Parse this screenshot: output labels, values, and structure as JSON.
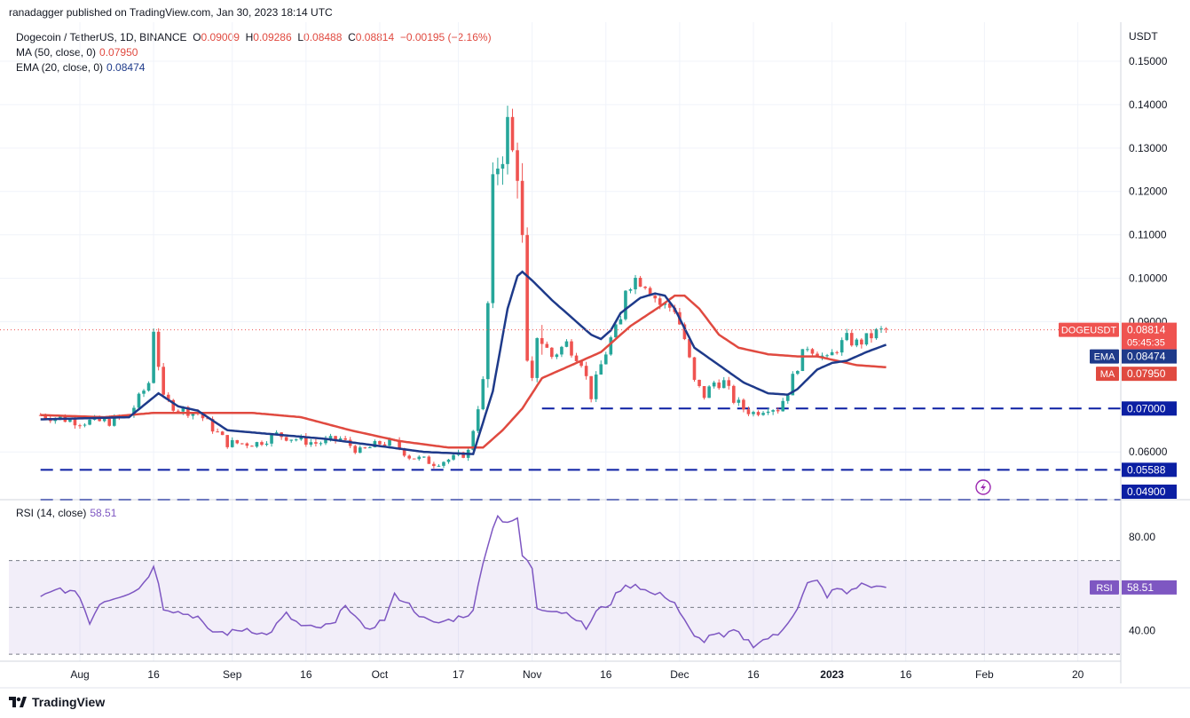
{
  "attribution": "ranadagger published on TradingView.com, Jan 30, 2023 18:14 UTC",
  "legend": {
    "symbol": "Dogecoin / TetherUS, 1D, BINANCE",
    "o_label": "O",
    "o": "0.09009",
    "h_label": "H",
    "h": "0.09286",
    "l_label": "L",
    "l": "0.08488",
    "c_label": "C",
    "c": "0.08814",
    "change": "−0.00195 (−2.16%)",
    "ma_label": "MA (50, close, 0)",
    "ma_value": "0.07950",
    "ema_label": "EMA (20, close, 0)",
    "ema_value": "0.08474"
  },
  "rsi_legend": {
    "label": "RSI (14, close)",
    "value": "58.51"
  },
  "currency": "USDT",
  "footer": {
    "brand": "TradingView"
  },
  "colors": {
    "up": "#26a69a",
    "down": "#ef5350",
    "ema": "#1e3a8a",
    "ma": "#e04a40",
    "rsi": "#7e57c2",
    "level": "#0b1fa3"
  },
  "chart_data": [
    {
      "type": "candlestick",
      "ylim": [
        0.049,
        0.159
      ],
      "y_ticks": [
        "0.15000",
        "0.14000",
        "0.13000",
        "0.12000",
        "0.11000",
        "0.10000",
        "0.09000",
        "0.06000"
      ],
      "x_ticks": [
        "Aug",
        "16",
        "Sep",
        "16",
        "Oct",
        "17",
        "Nov",
        "16",
        "Dec",
        "16",
        "2023",
        "16",
        "Feb",
        "20"
      ],
      "x_tick_days": [
        0,
        15,
        31,
        46,
        61,
        77,
        92,
        107,
        122,
        137,
        153,
        168,
        184,
        203
      ],
      "x_start": "2022-07-22",
      "horizontal_levels": [
        {
          "value": 0.07,
          "label": "0.07000",
          "from_day": 94
        },
        {
          "value": 0.05588,
          "label": "0.05588",
          "from_day": -8
        },
        {
          "value": 0.049,
          "label": "0.04900",
          "from_day": -8
        }
      ],
      "price_tags": [
        {
          "name": "DOGEUSDT",
          "value": "0.08814",
          "countdown": "05:45:35"
        },
        {
          "name": "EMA",
          "value": "0.08474"
        },
        {
          "name": "MA",
          "value": "0.07950"
        }
      ],
      "close_keypoints": [
        [
          -8,
          0.0685
        ],
        [
          0,
          0.067
        ],
        [
          6,
          0.067
        ],
        [
          10,
          0.0685
        ],
        [
          14,
          0.076
        ],
        [
          15,
          0.0885
        ],
        [
          17,
          0.072
        ],
        [
          20,
          0.07
        ],
        [
          24,
          0.069
        ],
        [
          30,
          0.062
        ],
        [
          36,
          0.062
        ],
        [
          40,
          0.064
        ],
        [
          44,
          0.063
        ],
        [
          48,
          0.062
        ],
        [
          53,
          0.063
        ],
        [
          57,
          0.06
        ],
        [
          61,
          0.062
        ],
        [
          64,
          0.062
        ],
        [
          67,
          0.059
        ],
        [
          72,
          0.0575
        ],
        [
          76,
          0.0585
        ],
        [
          79,
          0.06
        ],
        [
          82,
          0.076
        ],
        [
          83,
          0.094
        ],
        [
          84,
          0.122
        ],
        [
          85,
          0.126
        ],
        [
          86,
          0.128
        ],
        [
          87,
          0.136
        ],
        [
          88,
          0.129
        ],
        [
          89,
          0.124
        ],
        [
          90,
          0.109
        ],
        [
          91,
          0.08
        ],
        [
          92,
          0.076
        ],
        [
          93,
          0.087
        ],
        [
          96,
          0.082
        ],
        [
          99,
          0.085
        ],
        [
          102,
          0.081
        ],
        [
          104,
          0.073
        ],
        [
          106,
          0.08
        ],
        [
          108,
          0.086
        ],
        [
          110,
          0.09
        ],
        [
          111,
          0.098
        ],
        [
          113,
          0.1
        ],
        [
          115,
          0.099
        ],
        [
          118,
          0.094
        ],
        [
          121,
          0.093
        ],
        [
          123,
          0.086
        ],
        [
          125,
          0.076
        ],
        [
          127,
          0.073
        ],
        [
          129,
          0.076
        ],
        [
          131,
          0.076
        ],
        [
          133,
          0.072
        ],
        [
          135,
          0.07
        ],
        [
          137,
          0.069
        ],
        [
          140,
          0.0705
        ],
        [
          142,
          0.07
        ],
        [
          144,
          0.074
        ],
        [
          146,
          0.08
        ],
        [
          148,
          0.0845
        ],
        [
          150,
          0.083
        ],
        [
          152,
          0.081
        ],
        [
          154,
          0.084
        ],
        [
          156,
          0.086
        ],
        [
          158,
          0.085
        ],
        [
          160,
          0.086
        ],
        [
          162,
          0.0875
        ],
        [
          164,
          0.0881
        ]
      ],
      "ema20_keypoints": [
        [
          -8,
          0.0675
        ],
        [
          10,
          0.068
        ],
        [
          16,
          0.0735
        ],
        [
          20,
          0.0705
        ],
        [
          24,
          0.0695
        ],
        [
          30,
          0.065
        ],
        [
          40,
          0.064
        ],
        [
          50,
          0.063
        ],
        [
          60,
          0.0615
        ],
        [
          70,
          0.06
        ],
        [
          80,
          0.0595
        ],
        [
          84,
          0.074
        ],
        [
          87,
          0.093
        ],
        [
          89,
          0.1005
        ],
        [
          90,
          0.1015
        ],
        [
          92,
          0.0995
        ],
        [
          96,
          0.095
        ],
        [
          100,
          0.091
        ],
        [
          104,
          0.087
        ],
        [
          106,
          0.086
        ],
        [
          108,
          0.088
        ],
        [
          110,
          0.092
        ],
        [
          114,
          0.0955
        ],
        [
          117,
          0.0965
        ],
        [
          119,
          0.096
        ],
        [
          121,
          0.093
        ],
        [
          125,
          0.084
        ],
        [
          130,
          0.08
        ],
        [
          135,
          0.076
        ],
        [
          140,
          0.0735
        ],
        [
          144,
          0.0732
        ],
        [
          146,
          0.0745
        ],
        [
          150,
          0.079
        ],
        [
          153,
          0.0805
        ],
        [
          156,
          0.081
        ],
        [
          160,
          0.083
        ],
        [
          164,
          0.0847
        ]
      ],
      "ma50_keypoints": [
        [
          -8,
          0.0685
        ],
        [
          5,
          0.068
        ],
        [
          15,
          0.069
        ],
        [
          25,
          0.069
        ],
        [
          35,
          0.069
        ],
        [
          45,
          0.068
        ],
        [
          55,
          0.065
        ],
        [
          65,
          0.0625
        ],
        [
          75,
          0.061
        ],
        [
          82,
          0.061
        ],
        [
          86,
          0.065
        ],
        [
          90,
          0.07
        ],
        [
          94,
          0.077
        ],
        [
          100,
          0.08
        ],
        [
          106,
          0.083
        ],
        [
          112,
          0.089
        ],
        [
          118,
          0.0935
        ],
        [
          121,
          0.096
        ],
        [
          123,
          0.096
        ],
        [
          126,
          0.093
        ],
        [
          130,
          0.087
        ],
        [
          134,
          0.084
        ],
        [
          140,
          0.0825
        ],
        [
          146,
          0.082
        ],
        [
          150,
          0.082
        ],
        [
          154,
          0.081
        ],
        [
          158,
          0.08
        ],
        [
          164,
          0.0795
        ]
      ]
    },
    {
      "type": "line",
      "name": "RSI (14, close)",
      "ylim": [
        27,
        96
      ],
      "y_ticks": [
        "80.00",
        "40.00"
      ],
      "bands": {
        "upper": 70,
        "middle": 50,
        "lower": 30
      },
      "value_tag": {
        "name": "RSI",
        "value": "58.51"
      },
      "x_start": "2022-07-22",
      "keypoints": [
        [
          -8,
          54
        ],
        [
          -4,
          58
        ],
        [
          0,
          55
        ],
        [
          2,
          43
        ],
        [
          4,
          52
        ],
        [
          8,
          55
        ],
        [
          12,
          58
        ],
        [
          15,
          67
        ],
        [
          16,
          61
        ],
        [
          17,
          50
        ],
        [
          20,
          48
        ],
        [
          24,
          46
        ],
        [
          26,
          40
        ],
        [
          30,
          39
        ],
        [
          34,
          41
        ],
        [
          38,
          38
        ],
        [
          42,
          47
        ],
        [
          45,
          42
        ],
        [
          48,
          41
        ],
        [
          52,
          43
        ],
        [
          54,
          52
        ],
        [
          56,
          46
        ],
        [
          58,
          40
        ],
        [
          62,
          45
        ],
        [
          64,
          55
        ],
        [
          66,
          53
        ],
        [
          70,
          45
        ],
        [
          72,
          43
        ],
        [
          76,
          45
        ],
        [
          80,
          48
        ],
        [
          82,
          70
        ],
        [
          83,
          77
        ],
        [
          85,
          90
        ],
        [
          86,
          87
        ],
        [
          88,
          86
        ],
        [
          89,
          88
        ],
        [
          90,
          72
        ],
        [
          92,
          67
        ],
        [
          93,
          50
        ],
        [
          96,
          49
        ],
        [
          100,
          47
        ],
        [
          103,
          41
        ],
        [
          105,
          48
        ],
        [
          108,
          52
        ],
        [
          110,
          58
        ],
        [
          113,
          60
        ],
        [
          116,
          56
        ],
        [
          119,
          55
        ],
        [
          121,
          52
        ],
        [
          123,
          44
        ],
        [
          125,
          37
        ],
        [
          127,
          36
        ],
        [
          129,
          39
        ],
        [
          131,
          37
        ],
        [
          133,
          40
        ],
        [
          135,
          37
        ],
        [
          137,
          34
        ],
        [
          140,
          37
        ],
        [
          142,
          38
        ],
        [
          144,
          44
        ],
        [
          146,
          50
        ],
        [
          148,
          60
        ],
        [
          150,
          61
        ],
        [
          152,
          55
        ],
        [
          154,
          58
        ],
        [
          156,
          56
        ],
        [
          158,
          59
        ],
        [
          160,
          60
        ],
        [
          161,
          58
        ],
        [
          163,
          60
        ],
        [
          164,
          58.51
        ]
      ]
    }
  ]
}
